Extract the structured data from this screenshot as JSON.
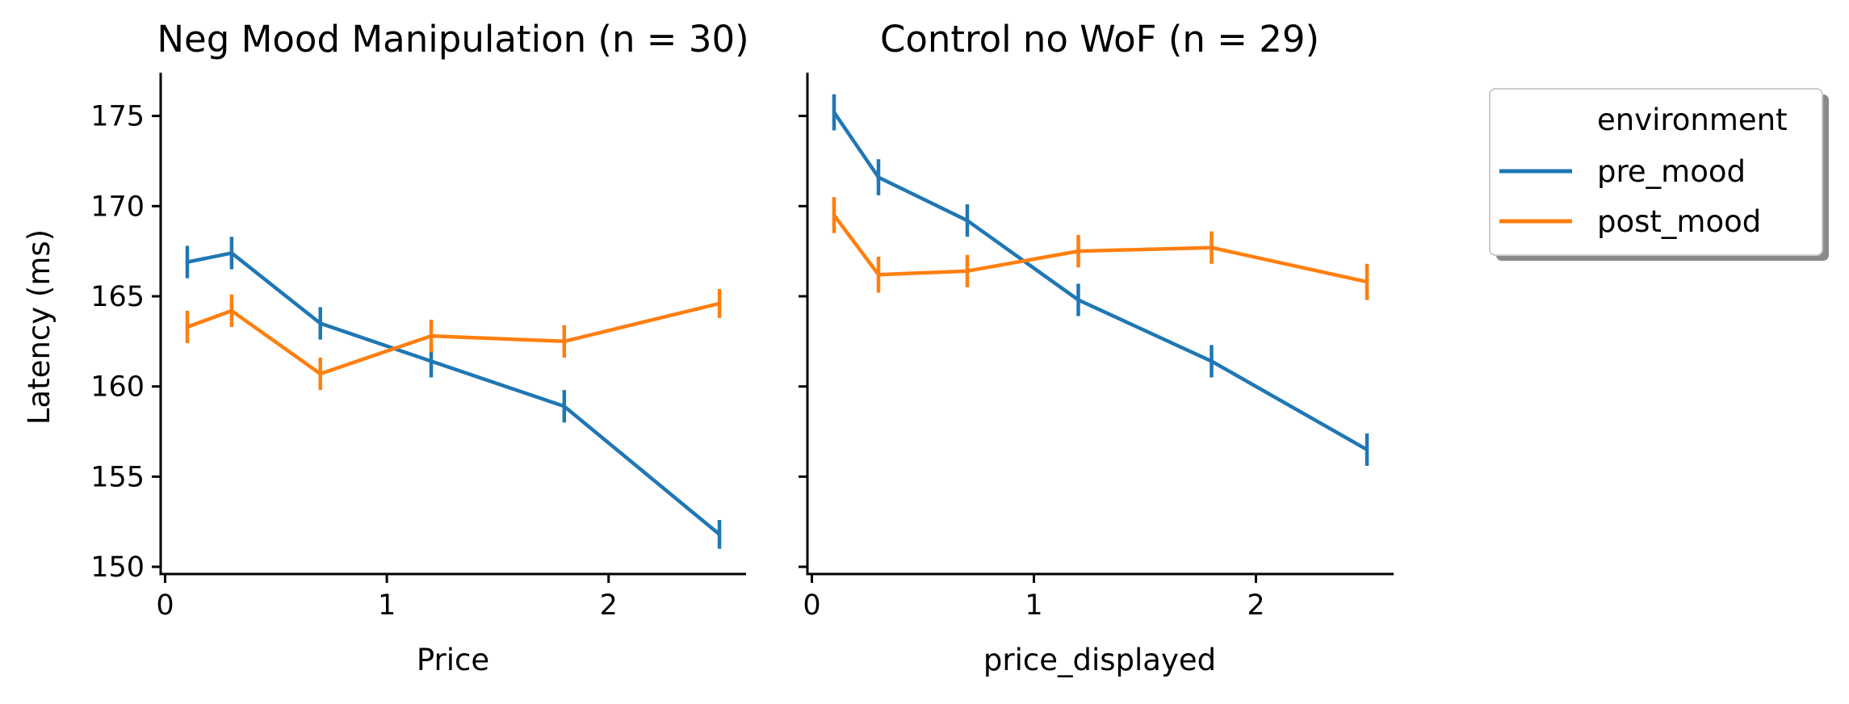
{
  "chart_data": [
    {
      "type": "line",
      "title": "Neg Mood Manipulation (n = 30)",
      "xlabel": "Price",
      "ylabel": "Latency (ms)",
      "x": [
        0.1,
        0.3,
        0.7,
        1.2,
        1.8,
        2.5
      ],
      "xlim": [
        -0.02,
        2.62
      ],
      "ylim": [
        149.6,
        177.4
      ],
      "xticks": [
        "0",
        "1",
        "2"
      ],
      "yticks": [
        "150",
        "155",
        "160",
        "165",
        "170",
        "175"
      ],
      "series": [
        {
          "name": "pre_mood",
          "color": "#1f77b4",
          "values": [
            166.9,
            167.4,
            163.5,
            161.4,
            158.9,
            151.8
          ],
          "err": [
            0.9,
            0.9,
            0.9,
            0.9,
            0.9,
            0.8
          ]
        },
        {
          "name": "post_mood",
          "color": "#ff7f0e",
          "values": [
            163.3,
            164.2,
            160.7,
            162.8,
            162.5,
            164.6
          ],
          "err": [
            0.9,
            0.9,
            0.9,
            0.9,
            0.9,
            0.8
          ]
        }
      ]
    },
    {
      "type": "line",
      "title": "Control no WoF (n = 29)",
      "xlabel": "price_displayed",
      "ylabel": "",
      "x": [
        0.1,
        0.3,
        0.7,
        1.2,
        1.8,
        2.5
      ],
      "xlim": [
        -0.02,
        2.62
      ],
      "ylim": [
        149.6,
        177.4
      ],
      "xticks": [
        "0",
        "1",
        "2"
      ],
      "yticks": [],
      "series": [
        {
          "name": "pre_mood",
          "color": "#1f77b4",
          "values": [
            175.2,
            171.6,
            169.2,
            164.8,
            161.4,
            156.5
          ],
          "err": [
            1.0,
            1.0,
            0.9,
            0.9,
            0.9,
            0.9
          ]
        },
        {
          "name": "post_mood",
          "color": "#ff7f0e",
          "values": [
            169.5,
            166.2,
            166.4,
            167.5,
            167.7,
            165.8
          ],
          "err": [
            1.0,
            1.0,
            0.9,
            0.9,
            0.9,
            1.0
          ]
        }
      ]
    }
  ],
  "legend": {
    "title": "environment",
    "placement": "right, outside plots",
    "entries": [
      {
        "label": "pre_mood",
        "color": "#1f77b4"
      },
      {
        "label": "post_mood",
        "color": "#ff7f0e"
      }
    ]
  }
}
